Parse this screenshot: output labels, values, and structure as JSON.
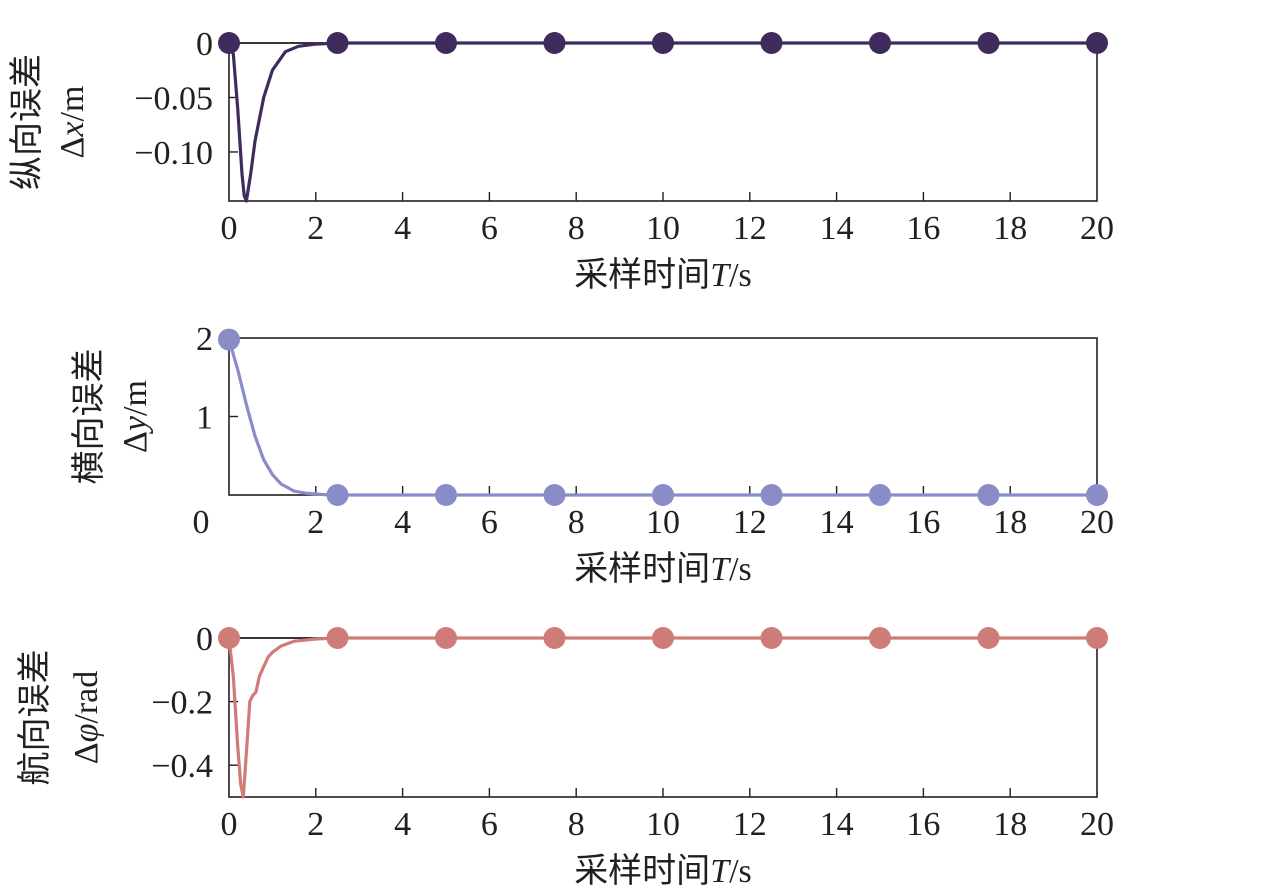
{
  "chart_data": [
    {
      "type": "line",
      "title": "",
      "xlabel": "采样时间T/s",
      "ylabel": [
        "纵向误差",
        "Δx/m"
      ],
      "xlim": [
        0,
        20
      ],
      "ylim": [
        -0.145,
        0
      ],
      "xticks": [
        0,
        2,
        4,
        6,
        8,
        10,
        12,
        14,
        16,
        18,
        20
      ],
      "yticks": [
        0,
        -0.05,
        -0.1
      ],
      "ytick_labels": [
        "0",
        "−0.05",
        "−0.10"
      ],
      "grid": false,
      "series": [
        {
          "color": "#3f2b5c",
          "x": [
            0,
            0.1,
            0.2,
            0.3,
            0.35,
            0.4,
            0.5,
            0.6,
            0.8,
            1.0,
            1.3,
            1.6,
            2.0,
            2.5,
            3,
            5,
            10,
            15,
            20
          ],
          "y": [
            0,
            -0.01,
            -0.06,
            -0.12,
            -0.14,
            -0.145,
            -0.12,
            -0.09,
            -0.05,
            -0.025,
            -0.008,
            -0.003,
            -0.001,
            0,
            0,
            0,
            0,
            0,
            0
          ],
          "markers_x": [
            0,
            2.5,
            5,
            7.5,
            10,
            12.5,
            15,
            17.5,
            20
          ],
          "markers_y": [
            0,
            0,
            0,
            0,
            0,
            0,
            0,
            0,
            0
          ]
        }
      ]
    },
    {
      "type": "line",
      "title": "",
      "xlabel": "采样时间T/s",
      "ylabel": [
        "横向误差",
        "Δy/m"
      ],
      "xlim": [
        0,
        20
      ],
      "ylim": [
        0,
        2
      ],
      "xticks": [
        0,
        2,
        4,
        6,
        8,
        10,
        12,
        14,
        16,
        18,
        20
      ],
      "yticks": [
        1,
        2
      ],
      "ytick_labels": [
        "1",
        "2"
      ],
      "grid": false,
      "series": [
        {
          "color": "#8a8cc8",
          "x": [
            0,
            0.2,
            0.4,
            0.6,
            0.8,
            1.0,
            1.2,
            1.5,
            1.8,
            2.2,
            2.5,
            5,
            10,
            15,
            20
          ],
          "y": [
            1.98,
            1.6,
            1.15,
            0.75,
            0.45,
            0.26,
            0.14,
            0.05,
            0.02,
            0.005,
            0,
            0,
            0,
            0,
            0
          ],
          "markers_x": [
            0,
            2.5,
            5,
            7.5,
            10,
            12.5,
            15,
            17.5,
            20
          ],
          "markers_y": [
            1.98,
            0,
            0,
            0,
            0,
            0,
            0,
            0,
            0
          ]
        }
      ]
    },
    {
      "type": "line",
      "title": "",
      "xlabel": "采样时间T/s",
      "ylabel": [
        "航向误差",
        "Δφ/rad"
      ],
      "xlim": [
        0,
        20
      ],
      "ylim": [
        -0.5,
        0
      ],
      "xticks": [
        0,
        2,
        4,
        6,
        8,
        10,
        12,
        14,
        16,
        18,
        20
      ],
      "yticks": [
        0,
        -0.2,
        -0.4
      ],
      "ytick_labels": [
        "0",
        "−0.2",
        "−0.4"
      ],
      "grid": false,
      "series": [
        {
          "color": "#cf7c78",
          "x": [
            0,
            0.1,
            0.2,
            0.27,
            0.33,
            0.4,
            0.48,
            0.55,
            0.62,
            0.7,
            0.8,
            0.9,
            1.0,
            1.2,
            1.5,
            2.0,
            2.5,
            5,
            10,
            15,
            20
          ],
          "y": [
            0,
            -0.12,
            -0.34,
            -0.46,
            -0.5,
            -0.36,
            -0.2,
            -0.18,
            -0.17,
            -0.12,
            -0.09,
            -0.06,
            -0.045,
            -0.025,
            -0.01,
            -0.003,
            0,
            0,
            0,
            0,
            0
          ],
          "markers_x": [
            0,
            2.5,
            5,
            7.5,
            10,
            12.5,
            15,
            17.5,
            20
          ],
          "markers_y": [
            0,
            0,
            0,
            0,
            0,
            0,
            0,
            0,
            0
          ]
        }
      ]
    }
  ]
}
